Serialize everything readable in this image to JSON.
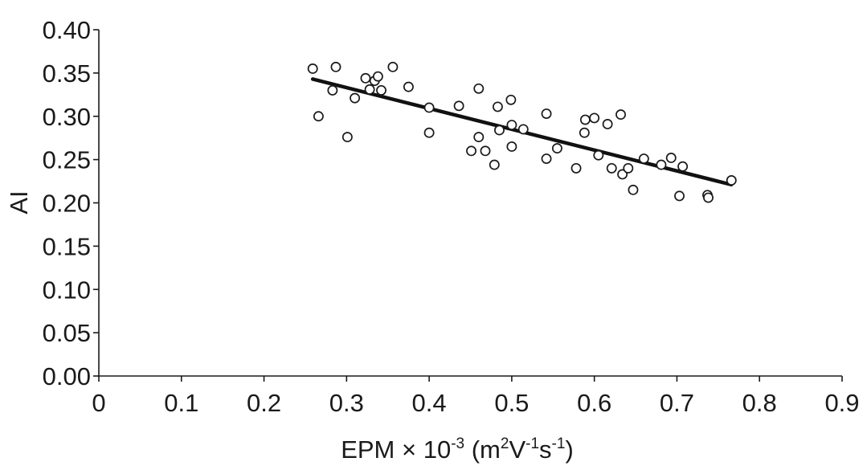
{
  "chart_data": {
    "type": "scatter",
    "xlabel_parts": {
      "prefix": "EPM × 10",
      "exp1": "-3",
      "mid1": " (m",
      "exp2": "2",
      "mid2": "V",
      "exp3": "-1",
      "mid3": "s",
      "exp4": "-1",
      "suffix": ")"
    },
    "ylabel": "AI",
    "xlim": [
      0,
      0.9
    ],
    "ylim": [
      0,
      0.4
    ],
    "x_ticks": [
      "0",
      "0.1",
      "0.2",
      "0.3",
      "0.4",
      "0.5",
      "0.6",
      "0.7",
      "0.8",
      "0.9"
    ],
    "y_ticks": [
      "0.00",
      "0.05",
      "0.10",
      "0.15",
      "0.20",
      "0.25",
      "0.30",
      "0.35",
      "0.40"
    ],
    "grid": false,
    "marker": "open-circle",
    "colors": {
      "marker": "#1a1a1a",
      "line": "#111111",
      "axis": "#1a1a1a"
    },
    "points": [
      {
        "x": 0.259,
        "y": 0.355
      },
      {
        "x": 0.266,
        "y": 0.3
      },
      {
        "x": 0.283,
        "y": 0.33
      },
      {
        "x": 0.287,
        "y": 0.357
      },
      {
        "x": 0.301,
        "y": 0.276
      },
      {
        "x": 0.31,
        "y": 0.321
      },
      {
        "x": 0.323,
        "y": 0.344
      },
      {
        "x": 0.328,
        "y": 0.331
      },
      {
        "x": 0.334,
        "y": 0.341
      },
      {
        "x": 0.338,
        "y": 0.346
      },
      {
        "x": 0.342,
        "y": 0.33
      },
      {
        "x": 0.356,
        "y": 0.357
      },
      {
        "x": 0.375,
        "y": 0.334
      },
      {
        "x": 0.4,
        "y": 0.31
      },
      {
        "x": 0.4,
        "y": 0.281
      },
      {
        "x": 0.436,
        "y": 0.312
      },
      {
        "x": 0.451,
        "y": 0.26
      },
      {
        "x": 0.46,
        "y": 0.276
      },
      {
        "x": 0.46,
        "y": 0.332
      },
      {
        "x": 0.468,
        "y": 0.26
      },
      {
        "x": 0.479,
        "y": 0.244
      },
      {
        "x": 0.483,
        "y": 0.311
      },
      {
        "x": 0.485,
        "y": 0.284
      },
      {
        "x": 0.499,
        "y": 0.319
      },
      {
        "x": 0.5,
        "y": 0.29
      },
      {
        "x": 0.5,
        "y": 0.265
      },
      {
        "x": 0.514,
        "y": 0.285
      },
      {
        "x": 0.542,
        "y": 0.303
      },
      {
        "x": 0.542,
        "y": 0.251
      },
      {
        "x": 0.555,
        "y": 0.263
      },
      {
        "x": 0.578,
        "y": 0.24
      },
      {
        "x": 0.588,
        "y": 0.281
      },
      {
        "x": 0.589,
        "y": 0.296
      },
      {
        "x": 0.6,
        "y": 0.298
      },
      {
        "x": 0.605,
        "y": 0.255
      },
      {
        "x": 0.616,
        "y": 0.291
      },
      {
        "x": 0.621,
        "y": 0.24
      },
      {
        "x": 0.632,
        "y": 0.302
      },
      {
        "x": 0.634,
        "y": 0.233
      },
      {
        "x": 0.641,
        "y": 0.24
      },
      {
        "x": 0.647,
        "y": 0.215
      },
      {
        "x": 0.66,
        "y": 0.251
      },
      {
        "x": 0.681,
        "y": 0.244
      },
      {
        "x": 0.693,
        "y": 0.252
      },
      {
        "x": 0.703,
        "y": 0.208
      },
      {
        "x": 0.707,
        "y": 0.242
      },
      {
        "x": 0.737,
        "y": 0.209
      },
      {
        "x": 0.738,
        "y": 0.206
      },
      {
        "x": 0.766,
        "y": 0.226
      }
    ],
    "fit_line": {
      "x": [
        0.259,
        0.766
      ],
      "y": [
        0.343,
        0.221
      ]
    }
  }
}
